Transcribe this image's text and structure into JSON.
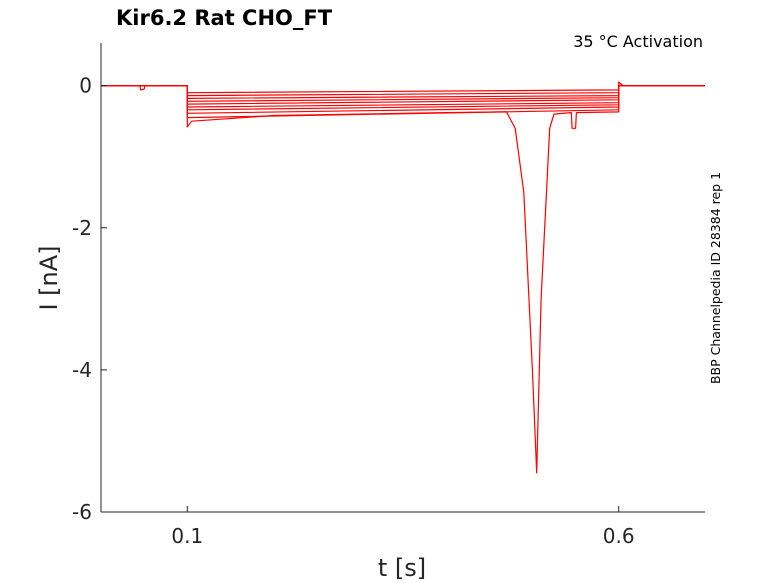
{
  "chart_data": {
    "type": "line",
    "title": "Kir6.2  Rat  CHO_FT",
    "annotation": "35 °C  Activation",
    "side_label": "BBP Channelpedia ID 28384 rep 1",
    "xlabel": "t [s]",
    "ylabel": "I [nA]",
    "xlim": [
      0.0,
      0.7
    ],
    "ylim": [
      -6.0,
      0.6
    ],
    "xticks": [
      {
        "value": 0.1,
        "label": "0.1"
      },
      {
        "value": 0.6,
        "label": "0.6"
      }
    ],
    "yticks": [
      {
        "value": 0,
        "label": "0"
      },
      {
        "value": -2,
        "label": "-2"
      },
      {
        "value": -4,
        "label": "-4"
      },
      {
        "value": -6,
        "label": "-6"
      }
    ],
    "grid": false,
    "line_color": "#ff0000",
    "series": [
      {
        "points": [
          [
            0.0,
            0.0
          ],
          [
            0.1,
            0.0
          ],
          [
            0.1,
            -0.1
          ],
          [
            0.6,
            -0.06
          ],
          [
            0.6,
            0.0
          ],
          [
            0.7,
            0.0
          ]
        ]
      },
      {
        "points": [
          [
            0.0,
            0.0
          ],
          [
            0.1,
            0.0
          ],
          [
            0.1,
            -0.14
          ],
          [
            0.6,
            -0.1
          ],
          [
            0.6,
            0.0
          ],
          [
            0.7,
            0.0
          ]
        ]
      },
      {
        "points": [
          [
            0.0,
            0.0
          ],
          [
            0.1,
            0.0
          ],
          [
            0.1,
            -0.18
          ],
          [
            0.6,
            -0.14
          ],
          [
            0.6,
            0.0
          ],
          [
            0.7,
            0.0
          ]
        ]
      },
      {
        "points": [
          [
            0.0,
            0.0
          ],
          [
            0.1,
            0.0
          ],
          [
            0.1,
            -0.22
          ],
          [
            0.6,
            -0.17
          ],
          [
            0.6,
            0.0
          ],
          [
            0.7,
            0.0
          ]
        ]
      },
      {
        "points": [
          [
            0.0,
            0.0
          ],
          [
            0.1,
            0.0
          ],
          [
            0.1,
            -0.26
          ],
          [
            0.6,
            -0.2
          ],
          [
            0.6,
            0.0
          ],
          [
            0.7,
            0.0
          ]
        ]
      },
      {
        "points": [
          [
            0.0,
            0.0
          ],
          [
            0.1,
            0.0
          ],
          [
            0.1,
            -0.3
          ],
          [
            0.6,
            -0.24
          ],
          [
            0.6,
            0.0
          ],
          [
            0.7,
            0.0
          ]
        ]
      },
      {
        "points": [
          [
            0.0,
            0.0
          ],
          [
            0.1,
            0.0
          ],
          [
            0.1,
            -0.34
          ],
          [
            0.6,
            -0.27
          ],
          [
            0.6,
            0.0
          ],
          [
            0.7,
            0.0
          ]
        ]
      },
      {
        "points": [
          [
            0.0,
            0.0
          ],
          [
            0.1,
            0.0
          ],
          [
            0.1,
            -0.39
          ],
          [
            0.6,
            -0.3
          ],
          [
            0.6,
            0.0
          ],
          [
            0.7,
            0.0
          ]
        ]
      },
      {
        "points": [
          [
            0.0,
            0.0
          ],
          [
            0.1,
            0.0
          ],
          [
            0.1,
            -0.45
          ],
          [
            0.6,
            -0.34
          ],
          [
            0.6,
            0.0
          ],
          [
            0.7,
            0.0
          ]
        ]
      },
      {
        "points": [
          [
            0.0,
            0.0
          ],
          [
            0.045,
            0.0
          ],
          [
            0.046,
            -0.06
          ],
          [
            0.05,
            -0.05
          ],
          [
            0.051,
            0.0
          ],
          [
            0.1,
            0.0
          ],
          [
            0.1,
            -0.58
          ],
          [
            0.105,
            -0.5
          ],
          [
            0.2,
            -0.42
          ],
          [
            0.4,
            -0.38
          ],
          [
            0.47,
            -0.37
          ],
          [
            0.48,
            -0.6
          ],
          [
            0.49,
            -1.5
          ],
          [
            0.5,
            -4.0
          ],
          [
            0.505,
            -5.45
          ],
          [
            0.51,
            -3.0
          ],
          [
            0.52,
            -0.6
          ],
          [
            0.525,
            -0.4
          ],
          [
            0.545,
            -0.38
          ],
          [
            0.546,
            -0.6
          ],
          [
            0.55,
            -0.6
          ],
          [
            0.551,
            -0.38
          ],
          [
            0.6,
            -0.37
          ],
          [
            0.6,
            0.05
          ],
          [
            0.605,
            0.0
          ],
          [
            0.7,
            0.0
          ]
        ]
      }
    ]
  }
}
